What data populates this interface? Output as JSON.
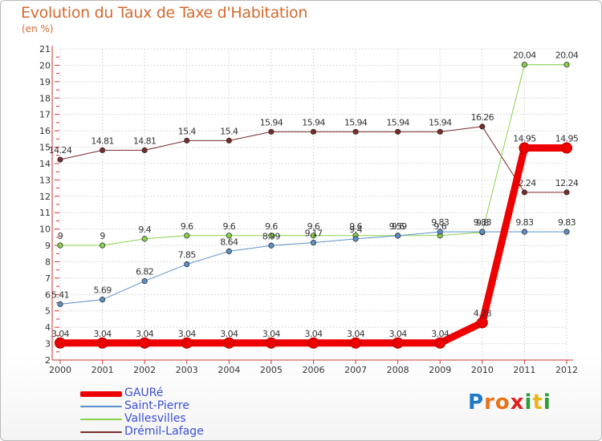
{
  "title": "Evolution du Taux de Taxe d'Habitation",
  "unit": "(en %)",
  "logo": {
    "text": "Proxiti",
    "letters": [
      "P",
      "r",
      "o",
      "x",
      "i",
      "t",
      "i"
    ],
    "colors": [
      "#1f78c8",
      "#e8731c",
      "#e8731c",
      "#e02020",
      "#2a9d3a",
      "#e8b51c",
      "#2a9d3a"
    ]
  },
  "chart_data": {
    "type": "line",
    "x": [
      "2000",
      "2001",
      "2002",
      "2003",
      "2004",
      "2005",
      "2006",
      "2007",
      "2008",
      "2009",
      "2010",
      "2011",
      "2012"
    ],
    "ylim": [
      2,
      21
    ],
    "yticks": [
      "2",
      "3",
      "4",
      "5",
      "6",
      "7",
      "8",
      "9",
      "10",
      "11",
      "12",
      "13",
      "14",
      "15",
      "16",
      "17",
      "18",
      "19",
      "20",
      "21"
    ],
    "grid": true,
    "legend_position": "bottom-left",
    "series": [
      {
        "name": "GAURé",
        "color": "#ee0000",
        "width": 9,
        "values": [
          3.04,
          3.04,
          3.04,
          3.04,
          3.04,
          3.04,
          3.04,
          3.04,
          3.04,
          3.04,
          4.28,
          14.95,
          14.95
        ],
        "labels": [
          "3.04",
          "3.04",
          "3.04",
          "3.04",
          "3.04",
          "3.04",
          "3.04",
          "3.04",
          "3.04",
          "3.04",
          "4.28",
          "14.95",
          "14.95"
        ]
      },
      {
        "name": "Saint-Pierre",
        "color": "#5b8fc9",
        "width": 1,
        "values": [
          5.41,
          5.69,
          6.82,
          7.85,
          8.64,
          8.99,
          9.17,
          9.4,
          9.59,
          9.83,
          9.83,
          9.83,
          9.83
        ],
        "labels": [
          "5.41",
          "5.69",
          "6.82",
          "7.85",
          "8.64",
          "8.99",
          "9.17",
          "9.4",
          "9.59",
          "9.83",
          "9.83",
          "9.83",
          "9.83"
        ]
      },
      {
        "name": "Vallesvilles",
        "color": "#8ad24a",
        "width": 1,
        "values": [
          9,
          9,
          9.4,
          9.6,
          9.6,
          9.6,
          9.6,
          9.6,
          9.6,
          9.6,
          9.8,
          20.04,
          20.04
        ],
        "labels": [
          "9",
          "9",
          "9.4",
          "9.6",
          "9.6",
          "9.6",
          "9.6",
          "9.6",
          "9.6",
          "9.6",
          "9.8",
          "20.04",
          "20.04"
        ]
      },
      {
        "name": "Drémil-Lafage",
        "color": "#7a2a2a",
        "width": 1,
        "values": [
          14.24,
          14.81,
          14.81,
          15.4,
          15.4,
          15.94,
          15.94,
          15.94,
          15.94,
          15.94,
          16.26,
          12.24,
          12.24
        ],
        "labels": [
          "14.24",
          "14.81",
          "14.81",
          "15.4",
          "15.4",
          "15.94",
          "15.94",
          "15.94",
          "15.94",
          "15.94",
          "16.26",
          "12.24",
          "12.24"
        ]
      }
    ]
  }
}
